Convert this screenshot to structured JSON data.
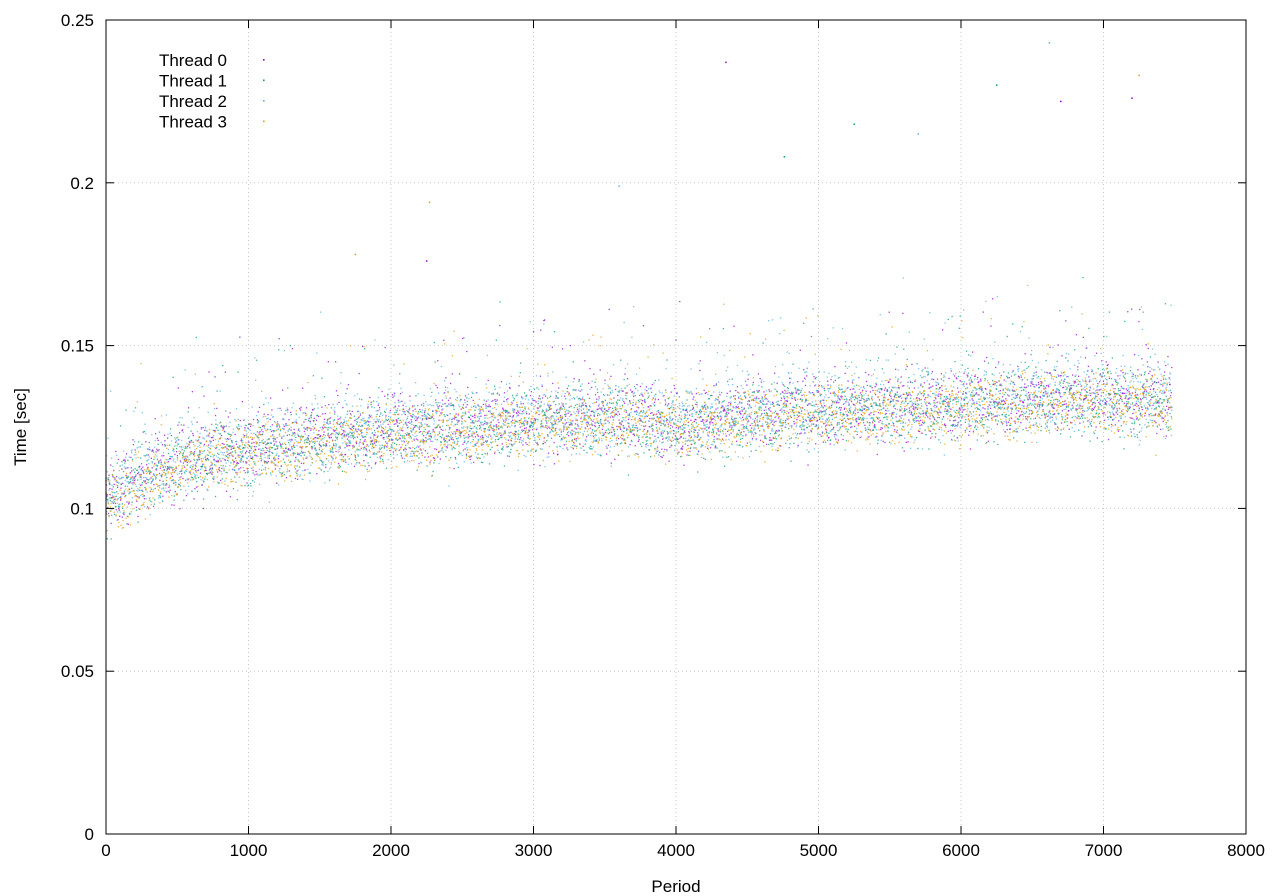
{
  "chart_data": {
    "type": "scatter",
    "title": "",
    "xlabel": "Period",
    "ylabel": "Time [sec]",
    "xlim": [
      0,
      8000
    ],
    "ylim": [
      0,
      0.25
    ],
    "x_ticks": [
      0,
      1000,
      2000,
      3000,
      4000,
      5000,
      6000,
      7000,
      8000
    ],
    "y_ticks": [
      0,
      0.05,
      0.1,
      0.15,
      0.2,
      0.25
    ],
    "x_tick_labels": [
      "0",
      "1000",
      "2000",
      "3000",
      "4000",
      "5000",
      "6000",
      "7000",
      "8000"
    ],
    "y_tick_labels": [
      "0",
      "0.05",
      "0.1",
      "0.15",
      "0.2",
      "0.25"
    ],
    "grid": true,
    "legend_position": "top-left",
    "series": [
      {
        "name": "Thread 0",
        "color": "#9400d3",
        "x": [
          0,
          250,
          500,
          750,
          1000,
          1250,
          1500,
          1750,
          2000,
          2250,
          2500,
          2750,
          3000,
          3250,
          3500,
          3750,
          4000,
          4250,
          4500,
          4750,
          5000,
          5250,
          5500,
          5750,
          6000,
          6250,
          6500,
          6750,
          7000,
          7250,
          7480
        ],
        "y": [
          0.103,
          0.11,
          0.114,
          0.117,
          0.119,
          0.12,
          0.122,
          0.123,
          0.124,
          0.125,
          0.126,
          0.127,
          0.127,
          0.128,
          0.128,
          0.129,
          0.126,
          0.127,
          0.129,
          0.13,
          0.131,
          0.131,
          0.131,
          0.132,
          0.133,
          0.133,
          0.134,
          0.134,
          0.134,
          0.134,
          0.134
        ],
        "spread": 0.01,
        "outliers": [
          [
            4350,
            0.237
          ],
          [
            7200,
            0.226
          ],
          [
            6700,
            0.225
          ],
          [
            2250,
            0.176
          ]
        ]
      },
      {
        "name": "Thread 1",
        "color": "#009e73",
        "x": [
          0,
          250,
          500,
          750,
          1000,
          1250,
          1500,
          1750,
          2000,
          2250,
          2500,
          2750,
          3000,
          3250,
          3500,
          3750,
          4000,
          4250,
          4500,
          4750,
          5000,
          5250,
          5500,
          5750,
          6000,
          6250,
          6500,
          6750,
          7000,
          7250,
          7480
        ],
        "y": [
          0.102,
          0.109,
          0.113,
          0.116,
          0.118,
          0.119,
          0.121,
          0.122,
          0.123,
          0.124,
          0.125,
          0.126,
          0.126,
          0.127,
          0.127,
          0.128,
          0.125,
          0.126,
          0.128,
          0.129,
          0.13,
          0.13,
          0.13,
          0.131,
          0.132,
          0.132,
          0.133,
          0.133,
          0.133,
          0.133,
          0.133
        ],
        "spread": 0.01,
        "outliers": [
          [
            6250,
            0.23
          ],
          [
            5250,
            0.218
          ],
          [
            4760,
            0.208
          ]
        ]
      },
      {
        "name": "Thread 2",
        "color": "#56b4e9",
        "x": [
          0,
          250,
          500,
          750,
          1000,
          1250,
          1500,
          1750,
          2000,
          2250,
          2500,
          2750,
          3000,
          3250,
          3500,
          3750,
          4000,
          4250,
          4500,
          4750,
          5000,
          5250,
          5500,
          5750,
          6000,
          6250,
          6500,
          6750,
          7000,
          7250,
          7480
        ],
        "y": [
          0.104,
          0.111,
          0.115,
          0.118,
          0.119,
          0.121,
          0.122,
          0.123,
          0.125,
          0.126,
          0.126,
          0.127,
          0.128,
          0.128,
          0.129,
          0.13,
          0.127,
          0.128,
          0.13,
          0.131,
          0.131,
          0.132,
          0.132,
          0.132,
          0.133,
          0.134,
          0.134,
          0.135,
          0.135,
          0.135,
          0.135
        ],
        "spread": 0.011,
        "outliers": [
          [
            6620,
            0.243
          ],
          [
            5700,
            0.215
          ],
          [
            3600,
            0.199
          ]
        ]
      },
      {
        "name": "Thread 3",
        "color": "#e69f00",
        "x": [
          0,
          250,
          500,
          750,
          1000,
          1250,
          1500,
          1750,
          2000,
          2250,
          2500,
          2750,
          3000,
          3250,
          3500,
          3750,
          4000,
          4250,
          4500,
          4750,
          5000,
          5250,
          5500,
          5750,
          6000,
          6250,
          6500,
          6750,
          7000,
          7250,
          7480
        ],
        "y": [
          0.101,
          0.108,
          0.112,
          0.115,
          0.117,
          0.118,
          0.12,
          0.121,
          0.122,
          0.123,
          0.124,
          0.125,
          0.125,
          0.126,
          0.126,
          0.127,
          0.124,
          0.125,
          0.127,
          0.128,
          0.129,
          0.129,
          0.129,
          0.13,
          0.131,
          0.131,
          0.132,
          0.132,
          0.132,
          0.132,
          0.132
        ],
        "spread": 0.009,
        "outliers": [
          [
            7250,
            0.233
          ],
          [
            2270,
            0.194
          ],
          [
            1750,
            0.178
          ]
        ]
      }
    ]
  }
}
